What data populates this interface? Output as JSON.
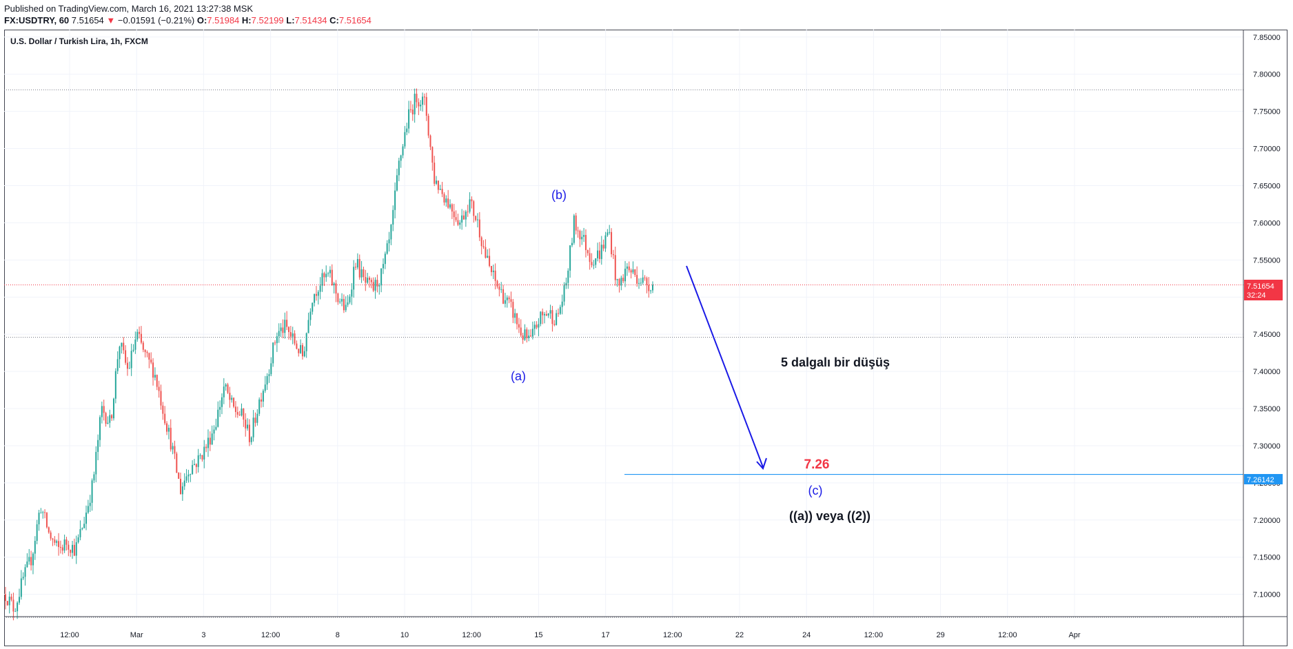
{
  "header": {
    "published": "Published on TradingView.com, March 16, 2021 13:27:38 MSK",
    "symbol": "FX:USDTRY, 60",
    "last": "7.51654",
    "change_arrow": "▼",
    "change": "−0.01591 (−0.21%)",
    "o_label": "O:",
    "o": "7.51984",
    "h_label": "H:",
    "h": "7.52199",
    "l_label": "L:",
    "l": "7.51434",
    "c_label": "C:",
    "c": "7.51654"
  },
  "chart_title": "U.S. Dollar / Turkish Lira, 1h, FXCM",
  "chart_data": {
    "type": "candlestick",
    "title": "U.S. Dollar / Turkish Lira, 1h, FXCM",
    "ylim": [
      7.07,
      7.86
    ],
    "y_ticks": [
      "7.85000",
      "7.80000",
      "7.75000",
      "7.70000",
      "7.65000",
      "7.60000",
      "7.55000",
      "7.50000",
      "7.45000",
      "7.40000",
      "7.35000",
      "7.30000",
      "7.25000",
      "7.20000",
      "7.15000",
      "7.10000"
    ],
    "x_ticks": [
      "12:00",
      "Mar",
      "3",
      "12:00",
      "8",
      "10",
      "12:00",
      "15",
      "17",
      "12:00",
      "22",
      "24",
      "12:00",
      "29",
      "12:00",
      "Apr"
    ],
    "colors": {
      "up": "#26a69a",
      "down": "#ef5350",
      "target_line": "#2196f3",
      "arrow": "#1a1ae6",
      "wave_label": "#1a1ae6",
      "target_text": "#f23645"
    },
    "price_path": [
      7.1,
      7.08,
      7.12,
      7.15,
      7.22,
      7.18,
      7.16,
      7.17,
      7.16,
      7.2,
      7.25,
      7.35,
      7.33,
      7.44,
      7.4,
      7.45,
      7.42,
      7.4,
      7.35,
      7.3,
      7.24,
      7.27,
      7.28,
      7.3,
      7.33,
      7.38,
      7.35,
      7.34,
      7.31,
      7.36,
      7.4,
      7.45,
      7.46,
      7.44,
      7.42,
      7.5,
      7.52,
      7.53,
      7.5,
      7.48,
      7.55,
      7.52,
      7.51,
      7.53,
      7.58,
      7.68,
      7.74,
      7.77,
      7.76,
      7.66,
      7.64,
      7.62,
      7.6,
      7.63,
      7.6,
      7.55,
      7.52,
      7.5,
      7.48,
      7.45,
      7.44,
      7.47,
      7.48,
      7.47,
      7.51,
      7.6,
      7.58,
      7.55,
      7.56,
      7.59,
      7.51,
      7.54,
      7.53,
      7.52,
      7.51654
    ],
    "horizontal_levels": [
      7.779,
      7.5165,
      7.446,
      7.069
    ],
    "current_price": {
      "value": "7.51654",
      "countdown": "32:24"
    },
    "target_level": {
      "value": "7.26142",
      "label": "7.26"
    },
    "annotations": {
      "wave_a": "(a)",
      "wave_b": "(b)",
      "wave_c": "(c)",
      "description": "5 dalgalı bir düşüş",
      "scenario": "((a)) veya ((2))"
    }
  }
}
